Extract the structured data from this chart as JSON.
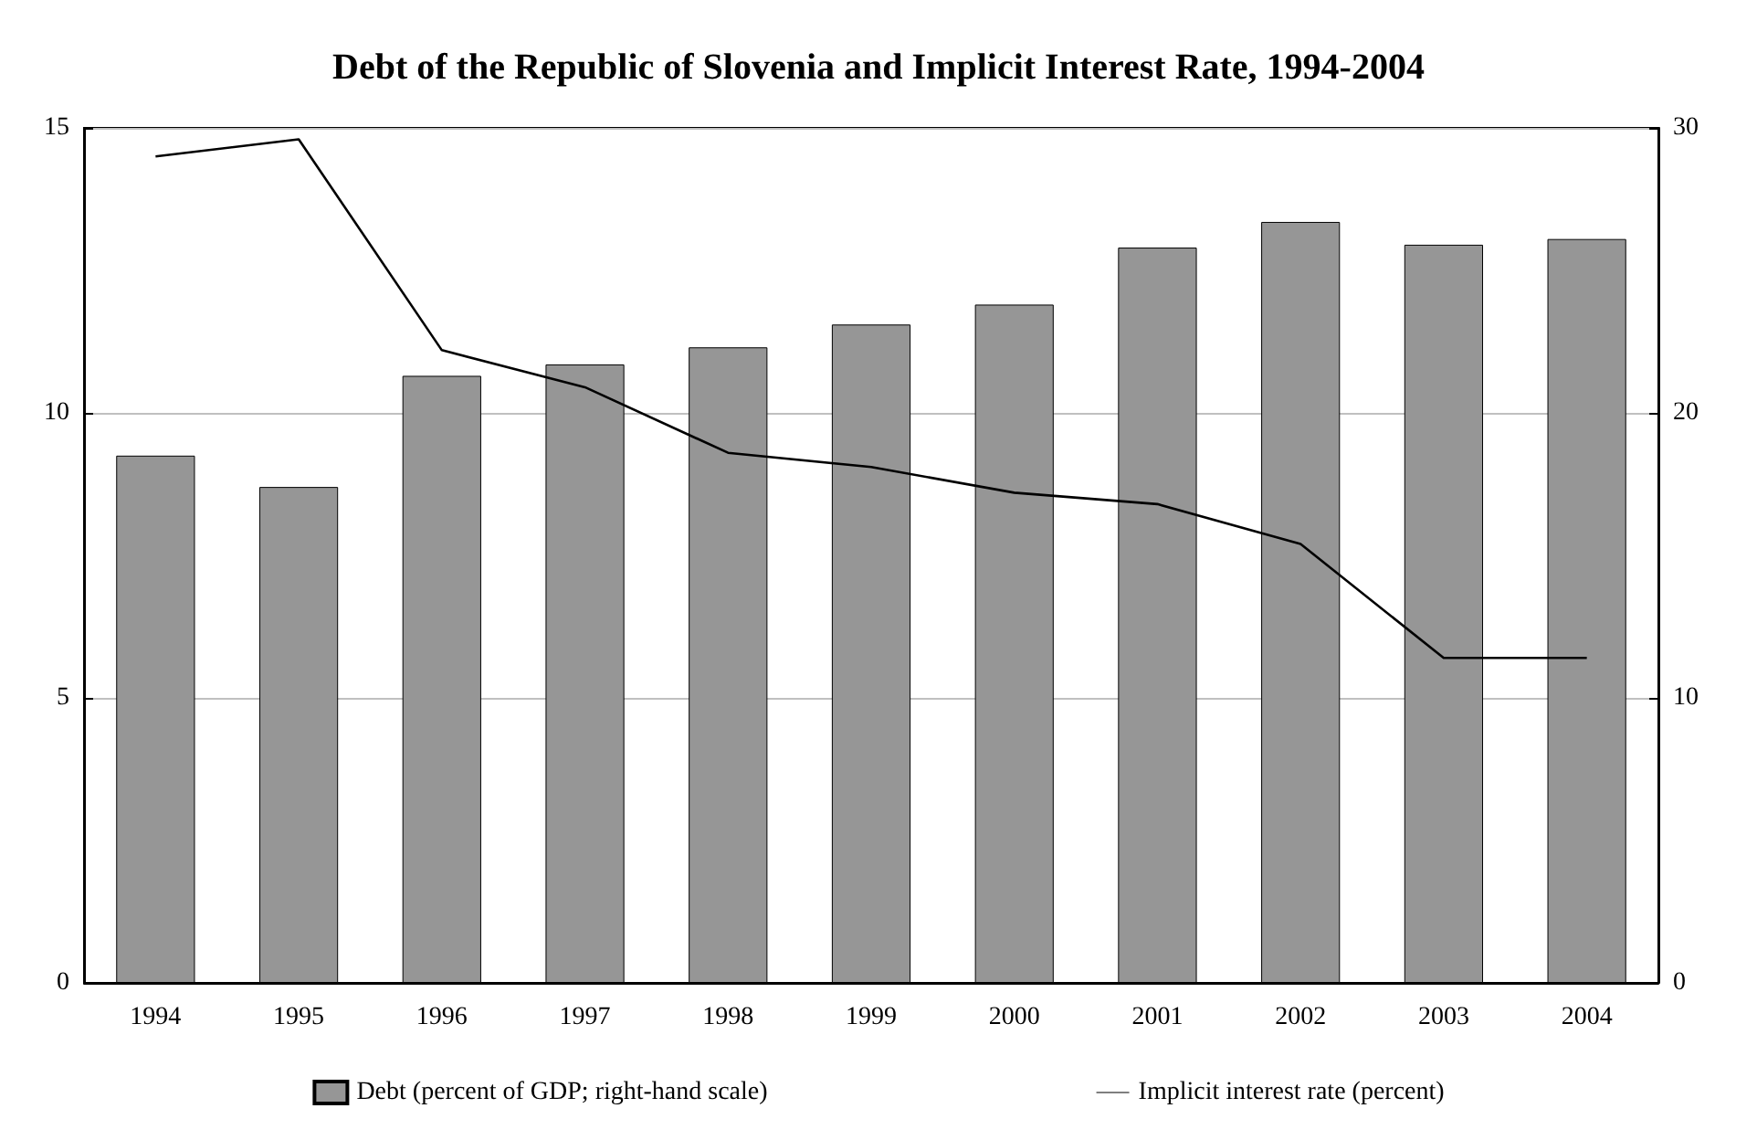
{
  "chart_data": {
    "type": "bar",
    "title": "Debt of the Republic of Slovenia and Implicit Interest Rate, 1994-2004",
    "categories": [
      "1994",
      "1995",
      "1996",
      "1997",
      "1998",
      "1999",
      "2000",
      "2001",
      "2002",
      "2003",
      "2004"
    ],
    "series": [
      {
        "name": "Debt (percent of GDP; right-hand scale)",
        "axis": "y2",
        "color": "#969696",
        "values": [
          18.5,
          17.4,
          21.3,
          21.7,
          22.3,
          23.1,
          23.8,
          25.8,
          26.7,
          25.9,
          26.1
        ]
      },
      {
        "name": "Implicit interest rate (percent)",
        "type": "line",
        "color": "#000000",
        "values": [
          14.5,
          14.8,
          11.1,
          10.45,
          9.3,
          9.05,
          8.6,
          8.4,
          7.7,
          5.7,
          5.7
        ]
      }
    ],
    "ylim": [
      0,
      15
    ],
    "yticks": [
      0,
      5,
      10,
      15
    ],
    "y2lim": [
      0,
      30
    ],
    "y2ticks": [
      0,
      10,
      20,
      30
    ],
    "grid": "y",
    "legend": "bottom",
    "marker": "none",
    "line_style": "solid"
  }
}
